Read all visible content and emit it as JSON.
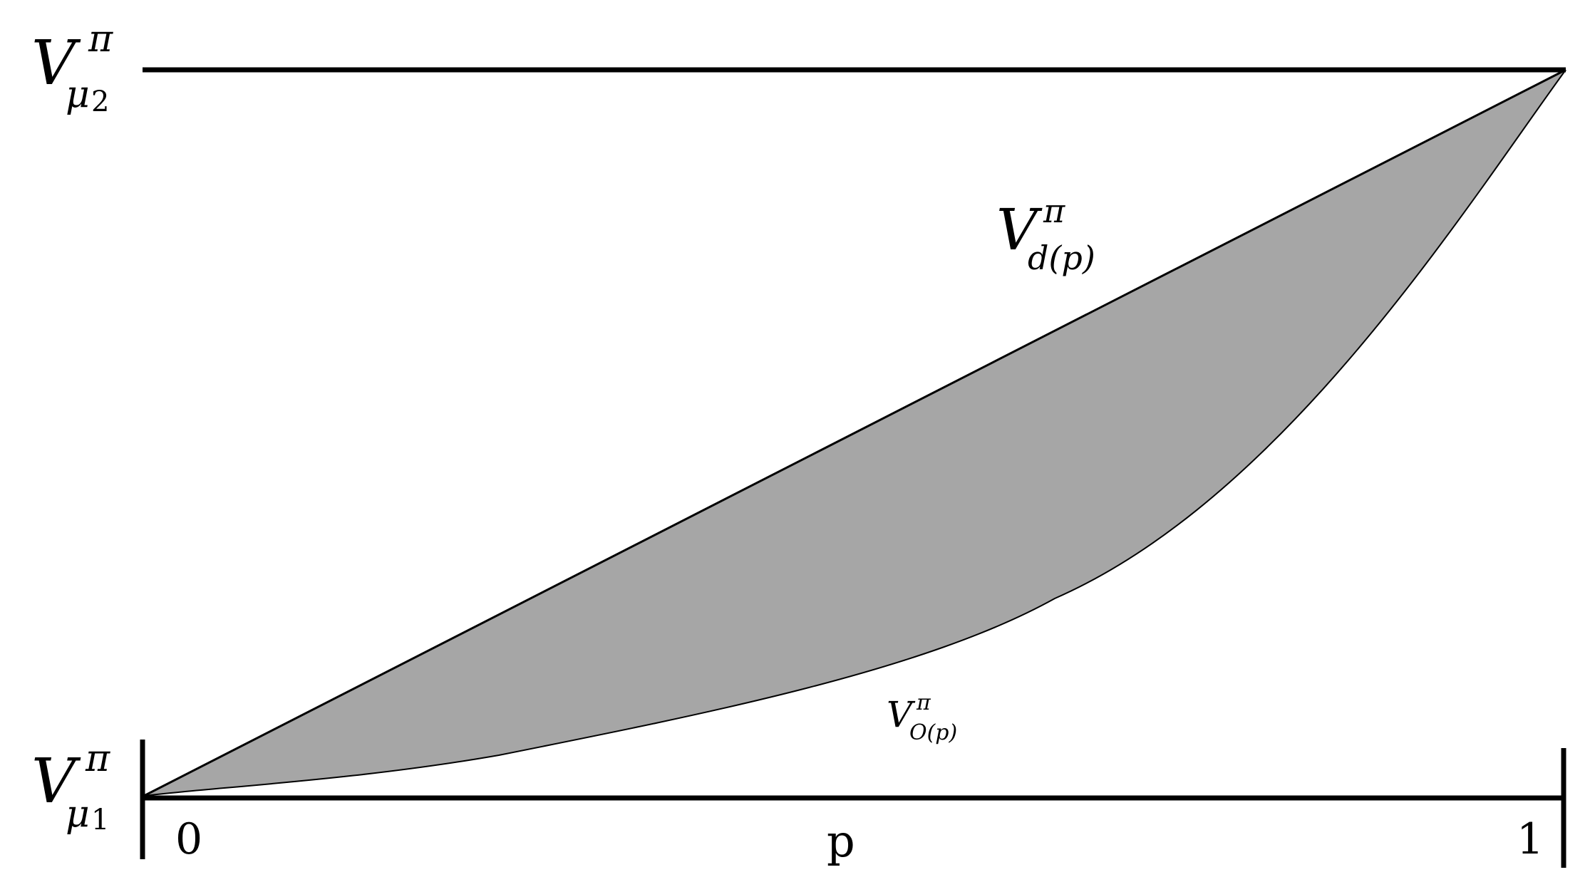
{
  "labels": {
    "top_value": {
      "base": "V",
      "sup": "π",
      "sub": "μ",
      "sub_index": "2"
    },
    "bottom_value": {
      "base": "V",
      "sup": "π",
      "sub": "μ",
      "sub_index": "1"
    },
    "upper_curve": {
      "base": "V",
      "sup": "π",
      "sub": "d(p)"
    },
    "lower_curve": {
      "base": "V",
      "sup": "π",
      "sub": "O(p)"
    },
    "x_axis": {
      "left_tick": "0",
      "axis_name": "p",
      "right_tick": "1"
    }
  },
  "colors": {
    "line": "#000000",
    "fill": "#a6a6a6",
    "background": "#ffffff"
  },
  "curves": {
    "upper": {
      "shape": "linear",
      "from": [
        0,
        0
      ],
      "to": [
        1,
        1
      ]
    },
    "lower": {
      "shape": "convex",
      "from": [
        0,
        0
      ],
      "to": [
        1,
        1
      ]
    }
  }
}
